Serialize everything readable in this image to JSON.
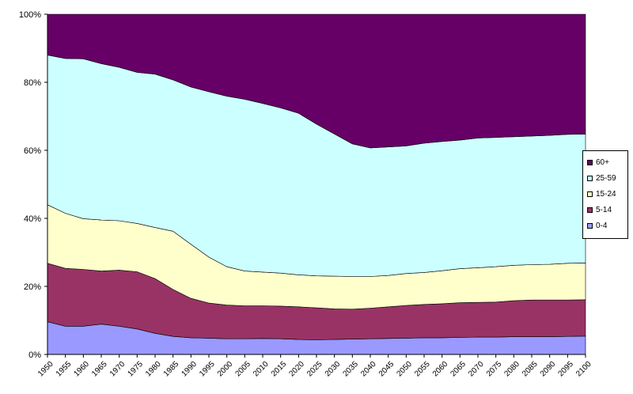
{
  "chart_data": {
    "type": "area",
    "stacked": "percent",
    "x": [
      1950,
      1955,
      1960,
      1965,
      1970,
      1975,
      1980,
      1985,
      1990,
      1995,
      2000,
      2005,
      2010,
      2015,
      2020,
      2025,
      2030,
      2035,
      2040,
      2045,
      2050,
      2055,
      2060,
      2065,
      2070,
      2075,
      2080,
      2085,
      2090,
      2095,
      2100
    ],
    "ylim": [
      0,
      100
    ],
    "yticks": [
      "0%",
      "20%",
      "40%",
      "60%",
      "80%",
      "100%"
    ],
    "grid": false,
    "legend_position": "right",
    "series": [
      {
        "name": "0-4",
        "color": "#9999ff",
        "values": [
          9.6,
          8.3,
          8.3,
          8.9,
          8.3,
          7.5,
          6.2,
          5.3,
          4.9,
          4.8,
          4.6,
          4.6,
          4.7,
          4.6,
          4.4,
          4.3,
          4.4,
          4.5,
          4.6,
          4.7,
          4.8,
          4.9,
          4.9,
          5.0,
          5.1,
          5.1,
          5.2,
          5.2,
          5.2,
          5.3,
          5.4
        ]
      },
      {
        "name": "5-14",
        "color": "#993366",
        "values": [
          17.2,
          17.0,
          16.7,
          15.6,
          16.5,
          16.8,
          16.1,
          13.8,
          11.6,
          10.3,
          9.9,
          9.7,
          9.6,
          9.6,
          9.6,
          9.4,
          9.0,
          8.8,
          9.0,
          9.3,
          9.6,
          9.8,
          10.0,
          10.2,
          10.2,
          10.3,
          10.6,
          10.8,
          10.8,
          10.7,
          10.7
        ]
      },
      {
        "name": "15-24",
        "color": "#ffffcc",
        "values": [
          17.2,
          16.2,
          14.9,
          15.0,
          14.5,
          14.2,
          15.0,
          17.1,
          15.9,
          13.5,
          11.3,
          10.2,
          9.9,
          9.7,
          9.4,
          9.4,
          9.6,
          9.6,
          9.3,
          9.2,
          9.4,
          9.4,
          9.7,
          10.0,
          10.2,
          10.4,
          10.4,
          10.4,
          10.5,
          10.8,
          10.8
        ]
      },
      {
        "name": "25-59",
        "color": "#ccffff",
        "values": [
          44.0,
          45.5,
          47.0,
          46.0,
          45.1,
          44.4,
          45.1,
          44.5,
          46.2,
          48.6,
          50.1,
          50.5,
          49.6,
          48.6,
          47.5,
          44.6,
          41.8,
          39.0,
          37.8,
          37.8,
          37.5,
          38.0,
          38.0,
          37.8,
          38.1,
          38.0,
          37.8,
          37.8,
          37.9,
          37.9,
          37.9
        ]
      },
      {
        "name": "60+",
        "color": "#660066",
        "values": [
          12.0,
          13.0,
          13.1,
          14.5,
          15.6,
          17.1,
          17.6,
          19.3,
          21.4,
          22.8,
          24.1,
          25.0,
          26.2,
          27.5,
          29.1,
          32.3,
          35.2,
          38.1,
          39.3,
          39.0,
          38.7,
          37.9,
          37.4,
          37.0,
          36.4,
          36.2,
          36.0,
          35.8,
          35.6,
          35.3,
          35.2
        ]
      }
    ]
  }
}
